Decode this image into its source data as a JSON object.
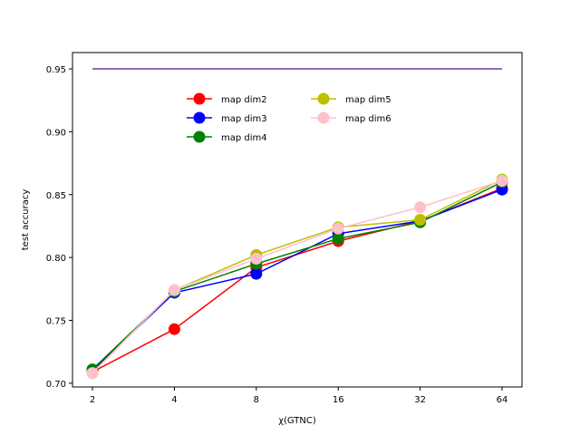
{
  "chart_data": {
    "type": "line",
    "xlabel": "χ(GTNC)",
    "ylabel": "test accuracy",
    "x": [
      2,
      4,
      8,
      16,
      32,
      64
    ],
    "x_scale": "log2",
    "x_tick_labels": [
      "2",
      "4",
      "8",
      "16",
      "32",
      "64"
    ],
    "y_ticks": [
      0.7,
      0.75,
      0.8,
      0.85,
      0.9,
      0.95
    ],
    "y_tick_labels": [
      "0.70",
      "0.75",
      "0.80",
      "0.85",
      "0.90",
      "0.95"
    ],
    "ylim": [
      0.697,
      0.963
    ],
    "legend_position": "upper-center",
    "series": [
      {
        "name": "map dim2",
        "color": "#ff0000",
        "values": [
          0.709,
          0.743,
          0.792,
          0.813,
          0.829,
          0.855
        ]
      },
      {
        "name": "map dim3",
        "color": "#0000ff",
        "values": [
          0.71,
          0.772,
          0.787,
          0.819,
          0.829,
          0.854
        ]
      },
      {
        "name": "map dim4",
        "color": "#008000",
        "values": [
          0.711,
          0.773,
          0.795,
          0.815,
          0.828,
          0.86
        ]
      },
      {
        "name": "map dim5",
        "color": "#bfbf00",
        "values": [
          0.708,
          0.774,
          0.802,
          0.824,
          0.83,
          0.862
        ]
      },
      {
        "name": "map dim6",
        "color": "#ffc0cb",
        "values": [
          0.708,
          0.774,
          0.799,
          0.823,
          0.84,
          0.861
        ]
      }
    ],
    "reference_line": {
      "color": "#9467bd",
      "value": 0.95,
      "x_start": 2,
      "x_end": 64
    }
  }
}
